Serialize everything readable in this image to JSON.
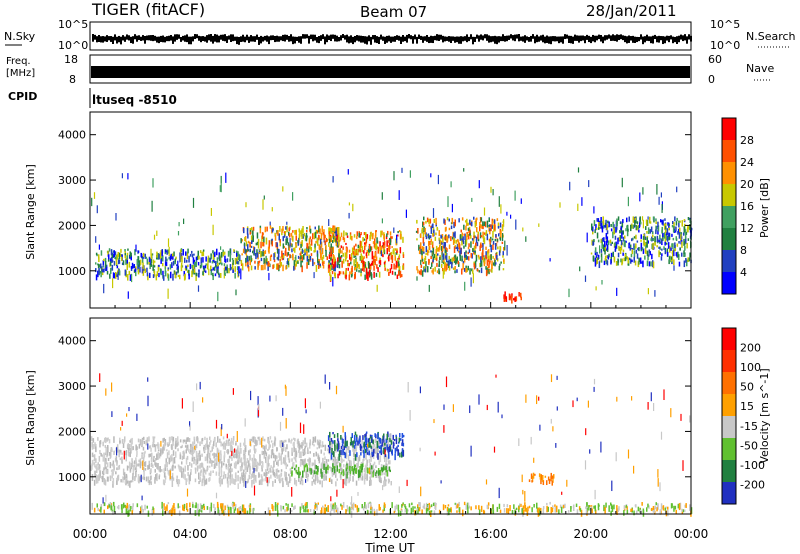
{
  "header": {
    "station": "TIGER (fitACF)",
    "beam": "Beam 07",
    "date": "28/Jan/2011"
  },
  "top_panels": {
    "nsky_label": "N.Sky",
    "nsky_ticks": [
      "10^5",
      "10^0"
    ],
    "nsearch_label": "N.Search",
    "nsearch_ticks": [
      "10^5",
      "10^0"
    ],
    "freq_label": [
      "Freq.",
      "[MHz]"
    ],
    "freq_ticks": [
      "18",
      "8"
    ],
    "nave_label": "Nave",
    "nave_ticks": [
      "60",
      "0"
    ],
    "cpid_label": "CPID",
    "cpid_value": "ltuseq -8510"
  },
  "time_axis": {
    "label": "Time UT",
    "ticks": [
      "00:00",
      "04:00",
      "08:00",
      "12:00",
      "16:00",
      "20:00",
      "00:00"
    ]
  },
  "panels": [
    {
      "id": "power",
      "ylabel": "Slant Range [km]",
      "yticks": [
        "4000",
        "3000",
        "2000",
        "1000"
      ],
      "colorbar_label": "Power [dB]",
      "colorbar_ticks": [
        "28",
        "24",
        "20",
        "16",
        "12",
        "8",
        "4"
      ],
      "colorbar_colors": [
        "#0000ff",
        "#2040c0",
        "#208040",
        "#40a060",
        "#c8c800",
        "#ff9000",
        "#ff5000",
        "#ff0000"
      ]
    },
    {
      "id": "velocity",
      "ylabel": "Slant Range [km]",
      "yticks": [
        "4000",
        "3000",
        "2000",
        "1000"
      ],
      "colorbar_label": "Velocity [m s^-1]",
      "colorbar_ticks": [
        "200",
        "100",
        "50",
        "15",
        "-15",
        "-50",
        "-100",
        "-200"
      ],
      "colorbar_colors": [
        "#2030c0",
        "#208040",
        "#60c030",
        "#c8c8c8",
        "#ffa000",
        "#ff7000",
        "#ff3000",
        "#ff0000"
      ]
    }
  ],
  "chart_data": {
    "type": "heatmap",
    "x_range_hours": [
      0,
      24
    ],
    "y_range_km": [
      180,
      4500
    ],
    "power_regions": [
      {
        "t0": 0.2,
        "t1": 6.0,
        "r0": 900,
        "r1": 1500,
        "level": "mixed-green"
      },
      {
        "t0": 6.0,
        "t1": 10.0,
        "r0": 1100,
        "r1": 2000,
        "level": "mixed-orange"
      },
      {
        "t0": 9.5,
        "t1": 12.5,
        "r0": 900,
        "r1": 1900,
        "level": "mixed-red"
      },
      {
        "t0": 13.0,
        "t1": 16.5,
        "r0": 1000,
        "r1": 2200,
        "level": "mixed-orange"
      },
      {
        "t0": 16.5,
        "t1": 17.2,
        "r0": 350,
        "r1": 550,
        "level": "red"
      },
      {
        "t0": 20.0,
        "t1": 24.0,
        "r0": 1200,
        "r1": 2200,
        "level": "mixed-green"
      }
    ],
    "velocity_regions": [
      {
        "t0": 0.0,
        "t1": 12.0,
        "r0": 900,
        "r1": 1900,
        "level": "grey"
      },
      {
        "t0": 9.5,
        "t1": 12.5,
        "r0": 1500,
        "r1": 2000,
        "level": "blue"
      },
      {
        "t0": 8.0,
        "t1": 12.0,
        "r0": 1100,
        "r1": 1300,
        "level": "green"
      },
      {
        "t0": 17.5,
        "t1": 18.5,
        "r0": 900,
        "r1": 1100,
        "level": "orange"
      },
      {
        "t0": 0.0,
        "t1": 24.0,
        "r0": 250,
        "r1": 450,
        "level": "green-orange"
      }
    ]
  }
}
